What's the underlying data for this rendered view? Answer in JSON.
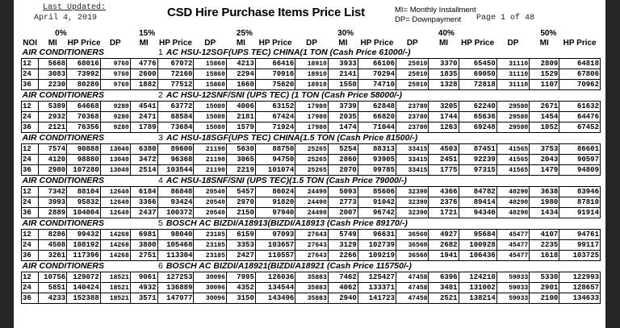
{
  "header": {
    "updated_label": "Last Updated:",
    "updated_date": "April 4, 2019",
    "title": "CSD Hire Purchase Items Price List",
    "legend_mi": "MI= Monthly Installment",
    "legend_dp": "DP= Downpayment",
    "page": "Page 1 of 48"
  },
  "percent_headers": [
    "0%",
    "15%",
    "25%",
    "30%",
    "40%",
    "50%"
  ],
  "col_headers_first": [
    "NOI",
    "MI",
    "HP Price"
  ],
  "col_headers": [
    "DP",
    "MI",
    "HP Price"
  ],
  "items": [
    {
      "category": "AIR CONDITIONERS",
      "num": "1",
      "name": "AC HSU-12SGF(UPS TEC) CHINA(1 TON (Cash Price 61000/-)",
      "rows": [
        [
          "12",
          "5668",
          "68016",
          "9760",
          "4776",
          "67072",
          "15860",
          "4213",
          "66416",
          "18910",
          "3933",
          "66106",
          "25010",
          "3370",
          "65450",
          "31110",
          "2809",
          "64818"
        ],
        [
          "24",
          "3083",
          "73992",
          "9760",
          "2600",
          "72160",
          "15860",
          "2294",
          "70916",
          "18910",
          "2141",
          "70294",
          "25010",
          "1835",
          "69050",
          "31110",
          "1529",
          "67806"
        ],
        [
          "36",
          "2230",
          "80280",
          "9760",
          "1882",
          "77512",
          "15860",
          "1660",
          "75620",
          "18910",
          "1550",
          "74710",
          "25010",
          "1328",
          "72818",
          "31110",
          "1107",
          "70962"
        ]
      ]
    },
    {
      "category": "AIR CONDITIONERS",
      "num": "2",
      "name": "AC HSU-12SNF/SNI (UPS TEC) (1 TON (Cash Price 58000/-)",
      "rows": [
        [
          "12",
          "5389",
          "64668",
          "9280",
          "4541",
          "63772",
          "15080",
          "4006",
          "63152",
          "17980",
          "3739",
          "62848",
          "23780",
          "3205",
          "62240",
          "29580",
          "2671",
          "61632"
        ],
        [
          "24",
          "2932",
          "70368",
          "9280",
          "2471",
          "68584",
          "15080",
          "2181",
          "67424",
          "17980",
          "2035",
          "66820",
          "23780",
          "1744",
          "65636",
          "29580",
          "1454",
          "64476"
        ],
        [
          "36",
          "2121",
          "76356",
          "9280",
          "1789",
          "73684",
          "15080",
          "1579",
          "71924",
          "17980",
          "1474",
          "71044",
          "23780",
          "1263",
          "69248",
          "29580",
          "1052",
          "67452"
        ]
      ]
    },
    {
      "category": "AIR CONDITIONERS",
      "num": "3",
      "name": "AC HSU-18SGF(UPS TEC) CHINA(1.5 TON (Cash Price 81500/-)",
      "rows": [
        [
          "12",
          "7574",
          "90888",
          "13040",
          "6380",
          "89600",
          "21190",
          "5630",
          "88750",
          "25265",
          "5254",
          "88313",
          "33415",
          "4503",
          "87451",
          "41565",
          "3753",
          "86601"
        ],
        [
          "24",
          "4120",
          "98880",
          "13040",
          "3472",
          "96368",
          "21190",
          "3065",
          "94750",
          "25265",
          "2860",
          "93905",
          "33415",
          "2451",
          "92239",
          "41565",
          "2043",
          "90597"
        ],
        [
          "36",
          "2980",
          "107280",
          "13040",
          "2514",
          "103544",
          "21190",
          "2219",
          "101074",
          "25265",
          "2070",
          "99785",
          "33415",
          "1775",
          "97315",
          "41565",
          "1479",
          "94809"
        ]
      ]
    },
    {
      "category": "AIR CONDITIONERS",
      "num": "4",
      "name": "AC HSU-18SNF/SNI (UPS TEC)(1.5 TON (Cash Price 79000/-)",
      "rows": [
        [
          "12",
          "7342",
          "88104",
          "12640",
          "6184",
          "86848",
          "20540",
          "5457",
          "86024",
          "24490",
          "5093",
          "85606",
          "32390",
          "4366",
          "84782",
          "40290",
          "3638",
          "83946"
        ],
        [
          "24",
          "3993",
          "95832",
          "12640",
          "3366",
          "93424",
          "20540",
          "2970",
          "91820",
          "24490",
          "2773",
          "91042",
          "32390",
          "2376",
          "89414",
          "40290",
          "1980",
          "87810"
        ],
        [
          "36",
          "2889",
          "104004",
          "12640",
          "2437",
          "100372",
          "20540",
          "2150",
          "97940",
          "24490",
          "2007",
          "96742",
          "32390",
          "1721",
          "94346",
          "40290",
          "1434",
          "91914"
        ]
      ]
    },
    {
      "category": "AIR CONDITIONERS",
      "num": "5",
      "name": "BOSCH AC BIZDI/A18913(BIZDI/A18913 (Cash Price 89170/-)",
      "rows": [
        [
          "12",
          "8286",
          "99432",
          "14268",
          "6981",
          "98040",
          "23185",
          "6159",
          "97093",
          "27643",
          "5749",
          "96631",
          "36560",
          "4927",
          "95684",
          "45477",
          "4107",
          "94761"
        ],
        [
          "24",
          "4508",
          "108192",
          "14268",
          "3800",
          "105468",
          "23185",
          "3353",
          "103657",
          "27643",
          "3129",
          "102739",
          "36560",
          "2682",
          "100928",
          "45477",
          "2235",
          "99117"
        ],
        [
          "36",
          "3261",
          "117396",
          "14268",
          "2751",
          "113304",
          "23185",
          "2427",
          "110557",
          "27643",
          "2266",
          "109219",
          "36560",
          "1941",
          "106436",
          "45477",
          "1618",
          "103725"
        ]
      ]
    },
    {
      "category": "AIR CONDITIONERS",
      "num": "6",
      "name": "BOSCH AC BIZDI/A18921(BIZDI/A18921 (Cash Price 115750/-)",
      "rows": [
        [
          "12",
          "10756",
          "129072",
          "18521",
          "9061",
          "127253",
          "30096",
          "7995",
          "126036",
          "35883",
          "7462",
          "125427",
          "47458",
          "6396",
          "124210",
          "59033",
          "5330",
          "122993"
        ],
        [
          "24",
          "5851",
          "140424",
          "18521",
          "4932",
          "136889",
          "30096",
          "4352",
          "134544",
          "35883",
          "4062",
          "133371",
          "47458",
          "3481",
          "131002",
          "59033",
          "2901",
          "128657"
        ],
        [
          "36",
          "4233",
          "152388",
          "18521",
          "3571",
          "147077",
          "30096",
          "3150",
          "143496",
          "35883",
          "2940",
          "141723",
          "47458",
          "2521",
          "138214",
          "59033",
          "2100",
          "134633"
        ]
      ]
    }
  ]
}
